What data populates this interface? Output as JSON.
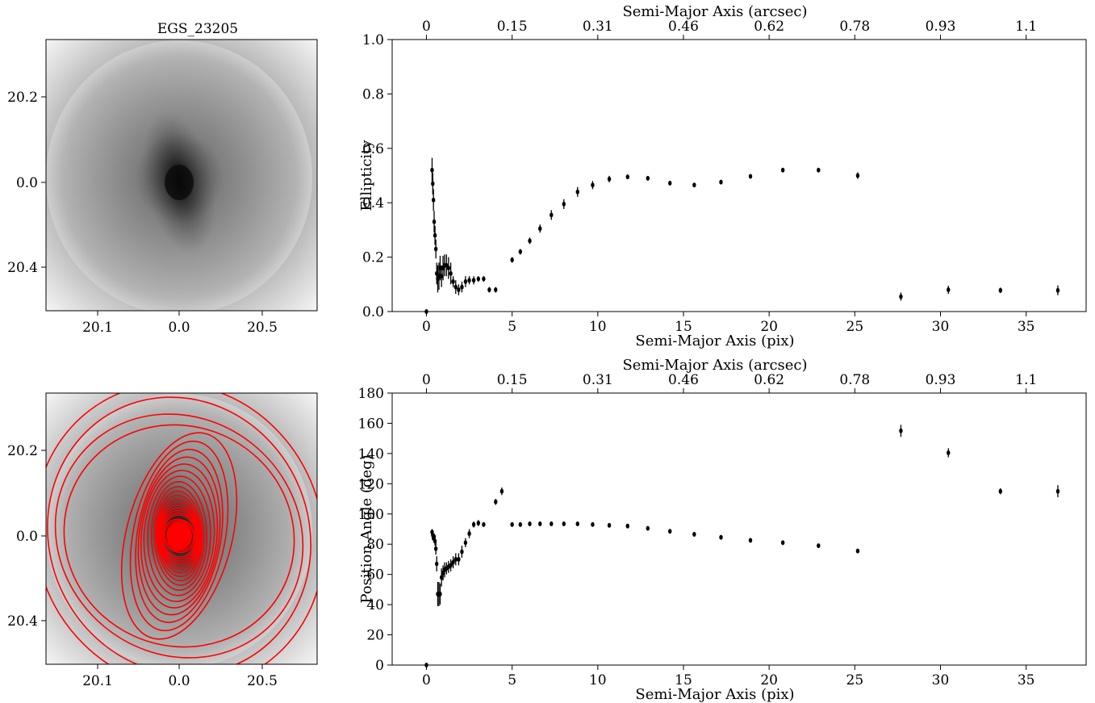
{
  "figure": {
    "image_title": "EGS_23205",
    "image_xticks": [
      "20.1",
      "0.0",
      "20.5"
    ],
    "image_yticks": [
      "20.2",
      "0.0",
      "20.4"
    ]
  },
  "colors": {
    "ellipse": "#ff0000",
    "points": "#000000"
  },
  "chart_data": [
    {
      "type": "scatter",
      "xlabel": "Semi-Major Axis (pix)",
      "x2label": "Semi-Major Axis (arcsec)",
      "ylabel": "Ellipticity",
      "xlim": [
        -2.0,
        38.5
      ],
      "ylim": [
        0,
        1.0
      ],
      "xticks": [
        0,
        5,
        10,
        15,
        20,
        25,
        30,
        35
      ],
      "yticks": [
        0.0,
        0.2,
        0.4,
        0.6,
        0.8,
        1.0
      ],
      "ytick_labels": [
        "0.0",
        "0.2",
        "0.4",
        "0.6",
        "0.8",
        "1.0"
      ],
      "x2ticks": [
        0,
        5.0,
        10.0,
        15.0,
        20.0,
        25.0,
        30.0,
        35.0
      ],
      "x2tick_labels": [
        "0",
        "0.15",
        "0.31",
        "0.46",
        "0.62",
        "0.78",
        "0.93",
        "1.1"
      ],
      "points": [
        [
          0.0,
          0.0,
          0.0
        ],
        [
          0.33,
          0.52,
          0.045
        ],
        [
          0.37,
          0.47,
          0.04
        ],
        [
          0.41,
          0.41,
          0.04
        ],
        [
          0.45,
          0.33,
          0.04
        ],
        [
          0.5,
          0.28,
          0.035
        ],
        [
          0.55,
          0.23,
          0.035
        ],
        [
          0.6,
          0.14,
          0.04
        ],
        [
          0.66,
          0.12,
          0.05
        ],
        [
          0.73,
          0.13,
          0.05
        ],
        [
          0.8,
          0.16,
          0.045
        ],
        [
          0.88,
          0.13,
          0.04
        ],
        [
          0.97,
          0.16,
          0.045
        ],
        [
          1.06,
          0.17,
          0.04
        ],
        [
          1.17,
          0.17,
          0.04
        ],
        [
          1.29,
          0.16,
          0.04
        ],
        [
          1.42,
          0.14,
          0.04
        ],
        [
          1.56,
          0.11,
          0.02
        ],
        [
          1.71,
          0.09,
          0.025
        ],
        [
          1.88,
          0.08,
          0.02
        ],
        [
          2.07,
          0.09,
          0.02
        ],
        [
          2.28,
          0.11,
          0.02
        ],
        [
          2.5,
          0.115,
          0.015
        ],
        [
          2.76,
          0.115,
          0.015
        ],
        [
          3.03,
          0.12,
          0.01
        ],
        [
          3.34,
          0.12,
          0.01
        ],
        [
          3.67,
          0.08,
          0.01
        ],
        [
          4.04,
          0.08,
          0.01
        ],
        [
          5.0,
          0.19,
          0.01
        ],
        [
          5.48,
          0.22,
          0.01
        ],
        [
          6.03,
          0.26,
          0.012
        ],
        [
          6.63,
          0.305,
          0.015
        ],
        [
          7.29,
          0.355,
          0.018
        ],
        [
          8.02,
          0.395,
          0.018
        ],
        [
          8.82,
          0.44,
          0.018
        ],
        [
          9.7,
          0.465,
          0.015
        ],
        [
          10.67,
          0.487,
          0.012
        ],
        [
          11.74,
          0.495,
          0.008
        ],
        [
          12.92,
          0.49,
          0.006
        ],
        [
          14.21,
          0.472,
          0.006
        ],
        [
          15.63,
          0.465,
          0.006
        ],
        [
          17.19,
          0.476,
          0.006
        ],
        [
          18.91,
          0.497,
          0.006
        ],
        [
          20.8,
          0.52,
          0.006
        ],
        [
          22.88,
          0.52,
          0.006
        ],
        [
          25.17,
          0.5,
          0.012
        ],
        [
          27.69,
          0.055,
          0.015
        ],
        [
          30.46,
          0.08,
          0.015
        ],
        [
          33.5,
          0.078,
          0.01
        ],
        [
          36.85,
          0.078,
          0.018
        ]
      ]
    },
    {
      "type": "scatter",
      "xlabel": "Semi-Major Axis (pix)",
      "x2label": "Semi-Major Axis (arcsec)",
      "ylabel": "Position Angle (deg)",
      "xlim": [
        -2.0,
        38.5
      ],
      "ylim": [
        0,
        180
      ],
      "xticks": [
        0,
        5,
        10,
        15,
        20,
        25,
        30,
        35
      ],
      "yticks": [
        0,
        20,
        40,
        60,
        80,
        100,
        120,
        140,
        160,
        180
      ],
      "ytick_labels": [
        "0",
        "20",
        "40",
        "60",
        "80",
        "100",
        "120",
        "140",
        "160",
        "180"
      ],
      "x2ticks": [
        0,
        5.0,
        10.0,
        15.0,
        20.0,
        25.0,
        30.0,
        35.0
      ],
      "x2tick_labels": [
        "0",
        "0.15",
        "0.31",
        "0.46",
        "0.62",
        "0.78",
        "0.93",
        "1.1"
      ],
      "points": [
        [
          0.0,
          0.0,
          0.0
        ],
        [
          0.33,
          88,
          2
        ],
        [
          0.37,
          86,
          2
        ],
        [
          0.41,
          84,
          2
        ],
        [
          0.45,
          85,
          2
        ],
        [
          0.5,
          82,
          3
        ],
        [
          0.55,
          77,
          4
        ],
        [
          0.6,
          67,
          5
        ],
        [
          0.66,
          47,
          8
        ],
        [
          0.73,
          47,
          8
        ],
        [
          0.8,
          47,
          7
        ],
        [
          0.88,
          58,
          6
        ],
        [
          0.97,
          61,
          5
        ],
        [
          1.06,
          63,
          5
        ],
        [
          1.17,
          64,
          4
        ],
        [
          1.29,
          65,
          4
        ],
        [
          1.42,
          66,
          4
        ],
        [
          1.56,
          68,
          4
        ],
        [
          1.71,
          70,
          4
        ],
        [
          1.88,
          70,
          4
        ],
        [
          2.07,
          75,
          4
        ],
        [
          2.28,
          81,
          3
        ],
        [
          2.5,
          87,
          3
        ],
        [
          2.76,
          93,
          2
        ],
        [
          3.03,
          94,
          2
        ],
        [
          3.34,
          93,
          1.5
        ],
        [
          4.04,
          108,
          2
        ],
        [
          4.4,
          115,
          2.5
        ],
        [
          5.0,
          93,
          1
        ],
        [
          5.48,
          93,
          1
        ],
        [
          6.03,
          93.5,
          1
        ],
        [
          6.63,
          93.5,
          1
        ],
        [
          7.29,
          93.5,
          1
        ],
        [
          8.02,
          93.5,
          1
        ],
        [
          8.82,
          93.5,
          1
        ],
        [
          9.7,
          93,
          1
        ],
        [
          10.67,
          92.5,
          1
        ],
        [
          11.74,
          92,
          1
        ],
        [
          12.92,
          90.5,
          1
        ],
        [
          14.21,
          88.5,
          1
        ],
        [
          15.63,
          86.5,
          1
        ],
        [
          17.19,
          84.5,
          1
        ],
        [
          18.91,
          82.5,
          1
        ],
        [
          20.8,
          81,
          1
        ],
        [
          22.88,
          79,
          1
        ],
        [
          25.17,
          75.5,
          1
        ],
        [
          27.69,
          155,
          4
        ],
        [
          30.46,
          140.5,
          3
        ],
        [
          33.5,
          115,
          2
        ],
        [
          36.85,
          115,
          4
        ]
      ]
    }
  ]
}
